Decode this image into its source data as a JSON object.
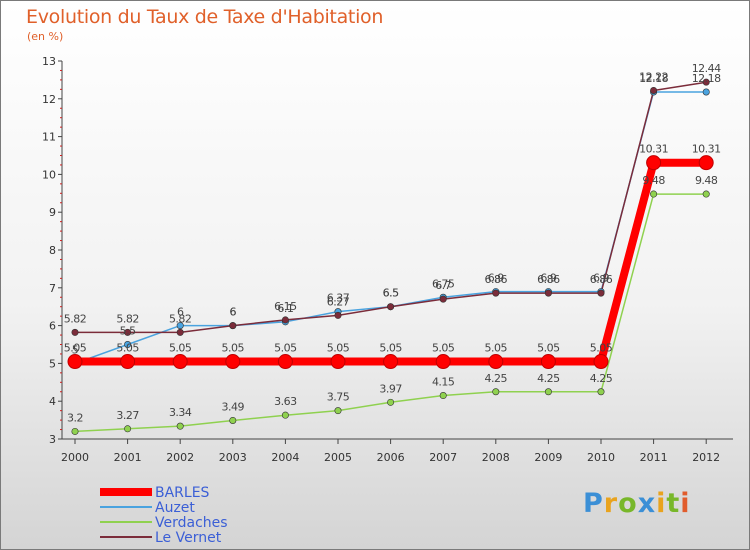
{
  "header": {
    "title": "Evolution du Taux de Taxe d'Habitation",
    "subtitle": "(en %)"
  },
  "logo": {
    "letters": [
      "P",
      "r",
      "o",
      "x",
      "i",
      "t",
      "i"
    ]
  },
  "chart_data": {
    "type": "line",
    "title": "Evolution du Taux de Taxe d'Habitation",
    "subtitle": "(en %)",
    "xlabel": "",
    "ylabel": "",
    "categories": [
      "2000",
      "2001",
      "2002",
      "2003",
      "2004",
      "2005",
      "2006",
      "2007",
      "2008",
      "2009",
      "2010",
      "2011",
      "2012"
    ],
    "ylim": [
      3,
      13
    ],
    "yticks": [
      "3",
      "4",
      "5",
      "6",
      "7",
      "8",
      "9",
      "10",
      "11",
      "12",
      "13"
    ],
    "grid": false,
    "legend_position": "bottom-left",
    "series": [
      {
        "name": "BARLES",
        "color": "#ff0000",
        "values": [
          5.05,
          5.05,
          5.05,
          5.05,
          5.05,
          5.05,
          5.05,
          5.05,
          5.05,
          5.05,
          5.05,
          10.31,
          10.31
        ],
        "labels": [
          "5.05",
          "5.05",
          "5.05",
          "5.05",
          "5.05",
          "5.05",
          "5.05",
          "5.05",
          "5.05",
          "5.05",
          "5.05",
          "10.31",
          "10.31"
        ]
      },
      {
        "name": "Auzet",
        "color": "#4aa3df",
        "values": [
          5.0,
          5.5,
          6.0,
          6.0,
          6.1,
          6.37,
          6.5,
          6.75,
          6.9,
          6.9,
          6.9,
          12.18,
          12.18
        ],
        "labels": [
          "5",
          "5.5",
          "6",
          "6",
          "6.1",
          "6.37",
          "6.5",
          "6.75",
          "6.9",
          "6.9",
          "6.9",
          "12.18",
          "12.18"
        ]
      },
      {
        "name": "Verdaches",
        "color": "#8fd14f",
        "values": [
          3.2,
          3.27,
          3.34,
          3.49,
          3.63,
          3.75,
          3.97,
          4.15,
          4.25,
          4.25,
          4.25,
          9.48,
          9.48
        ],
        "labels": [
          "3.2",
          "3.27",
          "3.34",
          "3.49",
          "3.63",
          "3.75",
          "3.97",
          "4.15",
          "4.25",
          "4.25",
          "4.25",
          "9.48",
          "9.48"
        ]
      },
      {
        "name": "Le Vernet",
        "color": "#7b2c3a",
        "values": [
          5.82,
          5.82,
          5.82,
          6.0,
          6.15,
          6.27,
          6.5,
          6.7,
          6.86,
          6.86,
          6.86,
          12.22,
          12.44
        ],
        "labels": [
          "5.82",
          "5.82",
          "5.82",
          "6",
          "6.15",
          "6.27",
          "6.5",
          "6.7",
          "6.86",
          "6.86",
          "6.86",
          "12.22",
          "12.44"
        ]
      }
    ]
  }
}
